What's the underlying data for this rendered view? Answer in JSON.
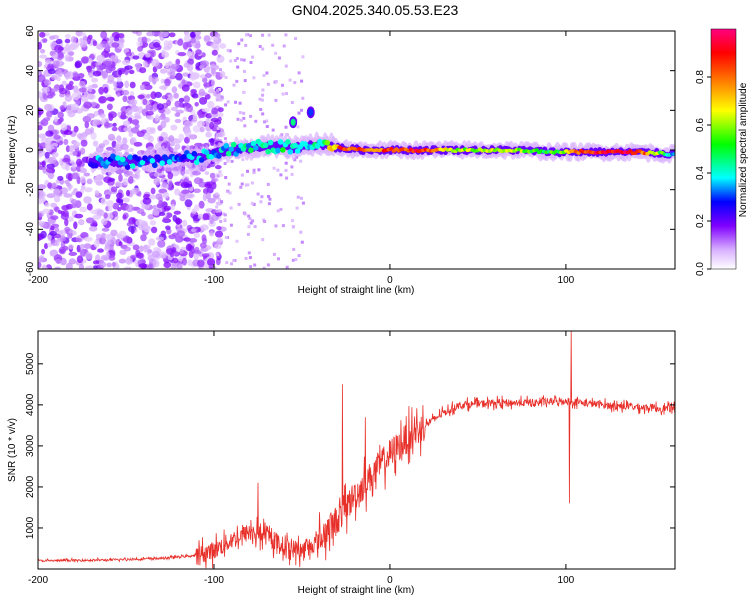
{
  "title": "GN04.2025.340.05.53.E23",
  "chart_data": [
    {
      "type": "heatmap",
      "name": "spectrogram",
      "xlabel": "Height of straight line (km)",
      "ylabel": "Frequency (Hz)",
      "xlim": [
        -200,
        162
      ],
      "ylim": [
        -60,
        60
      ],
      "xticks": [
        -200,
        -100,
        0,
        100
      ],
      "yticks": [
        -60,
        -40,
        -20,
        0,
        20,
        40,
        60
      ],
      "colorbar": {
        "label": "Normalized spectral amplitude",
        "range": [
          0,
          1
        ],
        "ticks": [
          0.0,
          0.2,
          0.4,
          0.6,
          0.8
        ],
        "colormap": [
          "#ffffff",
          "#d8b0ff",
          "#8000ff",
          "#0000ff",
          "#00ffff",
          "#00ff00",
          "#ffff00",
          "#ff7f00",
          "#ff0000",
          "#ff0080"
        ]
      },
      "ridge": [
        {
          "x": -170,
          "f": -6,
          "amp": 0.3
        },
        {
          "x": -150,
          "f": -6,
          "amp": 0.32
        },
        {
          "x": -130,
          "f": -5,
          "amp": 0.3
        },
        {
          "x": -110,
          "f": -4,
          "amp": 0.33
        },
        {
          "x": -90,
          "f": 0,
          "amp": 0.38
        },
        {
          "x": -70,
          "f": 2,
          "amp": 0.42
        },
        {
          "x": -55,
          "f": 1,
          "amp": 0.45
        },
        {
          "x": -40,
          "f": 3,
          "amp": 0.4
        },
        {
          "x": -28,
          "f": 1,
          "amp": 0.85
        },
        {
          "x": -15,
          "f": 0,
          "amp": 0.8
        },
        {
          "x": 0,
          "f": 0,
          "amp": 0.82
        },
        {
          "x": 15,
          "f": 0,
          "amp": 0.9
        },
        {
          "x": 40,
          "f": 0,
          "amp": 0.6
        },
        {
          "x": 70,
          "f": 0,
          "amp": 0.58
        },
        {
          "x": 95,
          "f": -1,
          "amp": 0.5
        },
        {
          "x": 110,
          "f": -1,
          "amp": 0.88
        },
        {
          "x": 140,
          "f": -1,
          "amp": 0.92
        },
        {
          "x": 160,
          "f": -2,
          "amp": 0.4
        }
      ],
      "isolated_blobs": [
        {
          "x": -55,
          "f": 14,
          "amp": 0.45
        },
        {
          "x": -45,
          "f": 19,
          "amp": 0.3
        }
      ],
      "noise_region_x": [
        -200,
        -100
      ],
      "sparse_region_x": [
        -100,
        -50
      ]
    },
    {
      "type": "line",
      "name": "snr",
      "xlabel": "Height of straight line (km)",
      "ylabel": "SNR (10 * v/v)",
      "xlim": [
        -200,
        162
      ],
      "ylim": [
        0,
        5800
      ],
      "xticks": [
        -200,
        -100,
        0,
        100
      ],
      "yticks": [
        1000,
        2000,
        3000,
        4000,
        5000
      ],
      "color": "#e8302a",
      "envelope": {
        "x": [
          -200,
          -160,
          -130,
          -110,
          -100,
          -90,
          -80,
          -70,
          -60,
          -50,
          -40,
          -30,
          -20,
          -10,
          0,
          10,
          20,
          30,
          40,
          60,
          80,
          100,
          120,
          140,
          162
        ],
        "y": [
          200,
          220,
          260,
          330,
          450,
          700,
          900,
          800,
          550,
          450,
          700,
          1200,
          1800,
          2300,
          2800,
          3200,
          3500,
          3800,
          4000,
          4050,
          4050,
          4100,
          4000,
          3950,
          3900
        ]
      },
      "spikes": [
        {
          "x": -27,
          "y": 4500
        },
        {
          "x": -14,
          "y": 3700
        },
        {
          "x": -75,
          "y": 2100
        },
        {
          "x": 103,
          "y": 5800
        },
        {
          "x": 102,
          "y": 1600
        }
      ]
    }
  ]
}
